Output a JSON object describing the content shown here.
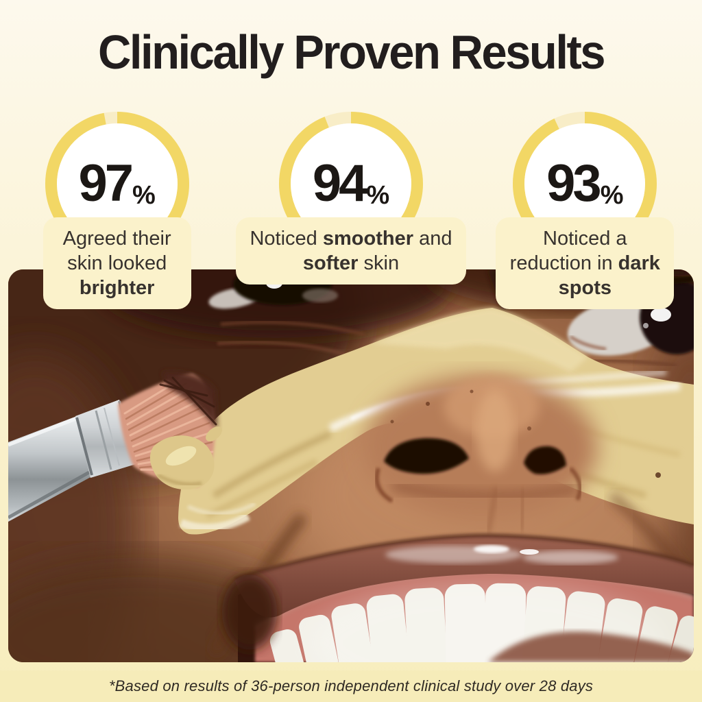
{
  "title": "Clinically Proven Results",
  "stats": [
    {
      "value": 97,
      "unit": "%",
      "description": [
        {
          "t": "Agreed their skin looked "
        },
        {
          "t": "brighter",
          "b": true
        }
      ]
    },
    {
      "value": 94,
      "unit": "%",
      "description": [
        {
          "t": "Noticed "
        },
        {
          "t": "smoother",
          "b": true
        },
        {
          "t": " and "
        },
        {
          "t": "softer",
          "b": true
        },
        {
          "t": " skin"
        }
      ]
    },
    {
      "value": 93,
      "unit": "%",
      "description": [
        {
          "t": "Noticed a reduction in "
        },
        {
          "t": "dark spots",
          "b": true
        }
      ]
    }
  ],
  "footnote": "*Based on results of 36-person independent clinical study over 28 days",
  "photo": {
    "alt": "Close-up of a smiling person with a yellow clay face mask being applied to the cheek with a silver makeup brush"
  },
  "theme": {
    "page_bg_top": "#fdf9ed",
    "page_bg_mid": "#faf1cd",
    "page_bg_bottom": "#f7edbd",
    "ring_color": "#f2d765",
    "ring_track_color": "#f8edc7",
    "card_bg": "#fbf2cb",
    "title_color": "#221e1e",
    "number_color": "#1b1714",
    "card_text_color": "#37322e",
    "footnote_bg": "#f6ecb9",
    "footnote_color": "#2f2a24"
  }
}
